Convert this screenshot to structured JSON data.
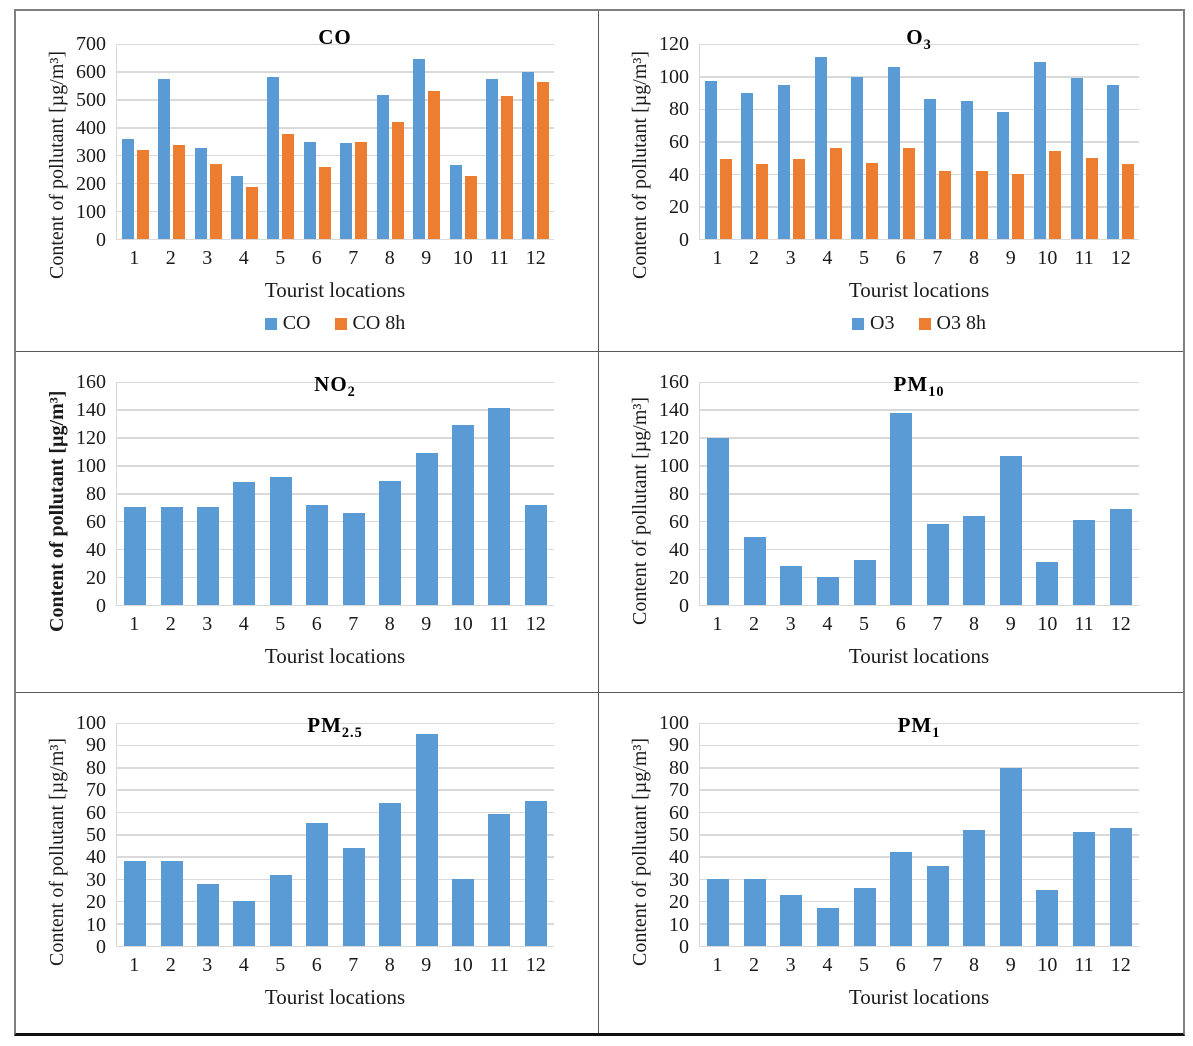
{
  "shared": {
    "xlabel": "Tourist locations",
    "ylabel": "Content of pollutant  [µg/m³]",
    "categories": [
      "1",
      "2",
      "3",
      "4",
      "5",
      "6",
      "7",
      "8",
      "9",
      "10",
      "11",
      "12"
    ]
  },
  "colors": {
    "blue": "#5B9BD5",
    "orange": "#ED7D31",
    "gridline": "#D9D9D9",
    "axis_line": "#BFBFBF",
    "text": "#262626",
    "outer_border": "#7F7F7F",
    "inner_border": "#595959"
  },
  "chart_data": [
    {
      "id": "co",
      "type": "bar",
      "title": {
        "main": "CO",
        "sub": ""
      },
      "xlabel": "Tourist locations",
      "ylabel": "Content of pollutant  [µg/m³]",
      "ylabel_bold": false,
      "categories": [
        "1",
        "2",
        "3",
        "4",
        "5",
        "6",
        "7",
        "8",
        "9",
        "10",
        "11",
        "12"
      ],
      "ylim": [
        0,
        700
      ],
      "ytick_step": 100,
      "grid": true,
      "legend_position": "bottom",
      "series": [
        {
          "name": "CO",
          "color_key": "blue",
          "values": [
            360,
            575,
            325,
            225,
            580,
            350,
            345,
            518,
            645,
            265,
            573,
            600
          ]
        },
        {
          "name": "CO 8h",
          "color_key": "orange",
          "values": [
            318,
            337,
            270,
            188,
            376,
            260,
            350,
            420,
            530,
            227,
            512,
            562
          ]
        }
      ]
    },
    {
      "id": "o3",
      "type": "bar",
      "title": {
        "main": "O",
        "sub": "3"
      },
      "xlabel": "Tourist locations",
      "ylabel": "Content of pollutant  [µg/m³]",
      "ylabel_bold": false,
      "categories": [
        "1",
        "2",
        "3",
        "4",
        "5",
        "6",
        "7",
        "8",
        "9",
        "10",
        "11",
        "12"
      ],
      "ylim": [
        0,
        120
      ],
      "ytick_step": 20,
      "grid": true,
      "legend_position": "bottom",
      "series": [
        {
          "name": "O3",
          "color_key": "blue",
          "values": [
            97,
            90,
            95,
            112,
            100,
            106,
            86,
            85,
            78,
            109,
            99,
            95
          ]
        },
        {
          "name": "O3 8h",
          "color_key": "orange",
          "values": [
            49,
            46,
            49,
            56,
            47,
            56,
            42,
            42,
            40,
            54,
            50,
            46
          ]
        }
      ]
    },
    {
      "id": "no2",
      "type": "bar",
      "title": {
        "main": "NO",
        "sub": "2"
      },
      "xlabel": "Tourist locations",
      "ylabel": "Content of pollutant  [µg/m³]",
      "ylabel_bold": true,
      "categories": [
        "1",
        "2",
        "3",
        "4",
        "5",
        "6",
        "7",
        "8",
        "9",
        "10",
        "11",
        "12"
      ],
      "ylim": [
        0,
        160
      ],
      "ytick_step": 20,
      "grid": true,
      "legend_position": null,
      "series": [
        {
          "name": "NO2",
          "color_key": "blue",
          "values": [
            70,
            70,
            70,
            88,
            92,
            72,
            66,
            89,
            109,
            129,
            141,
            72
          ]
        }
      ]
    },
    {
      "id": "pm10",
      "type": "bar",
      "title": {
        "main": "PM",
        "sub": "10"
      },
      "xlabel": "Tourist locations",
      "ylabel": "Content of pollutant  [µg/m³]",
      "ylabel_bold": false,
      "categories": [
        "1",
        "2",
        "3",
        "4",
        "5",
        "6",
        "7",
        "8",
        "9",
        "10",
        "11",
        "12"
      ],
      "ylim": [
        0,
        160
      ],
      "ytick_step": 20,
      "grid": true,
      "legend_position": null,
      "series": [
        {
          "name": "PM10",
          "color_key": "blue",
          "values": [
            120,
            49,
            28,
            20,
            32,
            138,
            58,
            64,
            107,
            31,
            61,
            69
          ]
        }
      ]
    },
    {
      "id": "pm25",
      "type": "bar",
      "title": {
        "main": "PM",
        "sub": "2.5"
      },
      "xlabel": "Tourist locations",
      "ylabel": "Content of pollutant  [µg/m³]",
      "ylabel_bold": false,
      "categories": [
        "1",
        "2",
        "3",
        "4",
        "5",
        "6",
        "7",
        "8",
        "9",
        "10",
        "11",
        "12"
      ],
      "ylim": [
        0,
        100
      ],
      "ytick_step": 10,
      "grid": true,
      "legend_position": null,
      "series": [
        {
          "name": "PM2.5",
          "color_key": "blue",
          "values": [
            38,
            38,
            28,
            20,
            32,
            55,
            44,
            64,
            95,
            30,
            59,
            65
          ]
        }
      ]
    },
    {
      "id": "pm1",
      "type": "bar",
      "title": {
        "main": "PM",
        "sub": "1"
      },
      "xlabel": "Tourist locations",
      "ylabel": "Content of pollutant  [µg/m³]",
      "ylabel_bold": false,
      "categories": [
        "1",
        "2",
        "3",
        "4",
        "5",
        "6",
        "7",
        "8",
        "9",
        "10",
        "11",
        "12"
      ],
      "ylim": [
        0,
        100
      ],
      "ytick_step": 10,
      "grid": true,
      "legend_position": null,
      "series": [
        {
          "name": "PM1",
          "color_key": "blue",
          "values": [
            30,
            30,
            23,
            17,
            26,
            42,
            36,
            52,
            80,
            25,
            51,
            53
          ]
        }
      ]
    }
  ]
}
